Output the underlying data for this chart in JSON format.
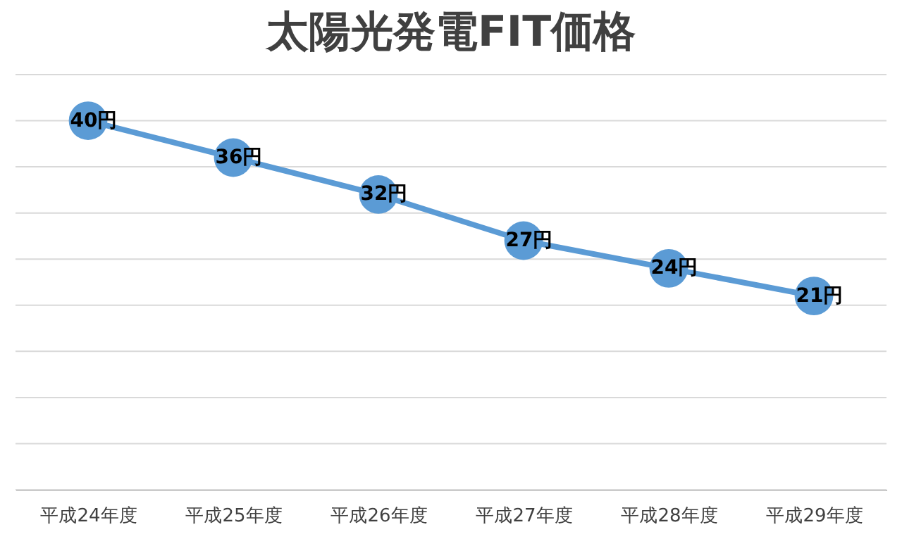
{
  "chart_data": {
    "type": "line",
    "title": "太陽光発電FIT価格",
    "categories": [
      "平成24年度",
      "平成25年度",
      "平成26年度",
      "平成27年度",
      "平成28年度",
      "平成29年度"
    ],
    "values": [
      40,
      36,
      32,
      27,
      24,
      21
    ],
    "value_labels": [
      "40円",
      "36円",
      "32円",
      "27円",
      "24円",
      "21円"
    ],
    "color": "#5b9bd5",
    "ylim": [
      0,
      45
    ],
    "yticks": [
      {
        "value": 0,
        "label": null
      },
      {
        "value": 5,
        "label": null
      },
      {
        "value": 10,
        "label": null
      },
      {
        "value": 15,
        "label": null
      },
      {
        "value": 20,
        "label": null
      },
      {
        "value": 25,
        "label": null
      },
      {
        "value": 30,
        "label": null
      },
      {
        "value": 35,
        "label": null
      },
      {
        "value": 40,
        "label": null
      },
      {
        "value": 45,
        "label": null
      }
    ],
    "grid": "y",
    "marker": "circle",
    "tick_labels": "x"
  }
}
